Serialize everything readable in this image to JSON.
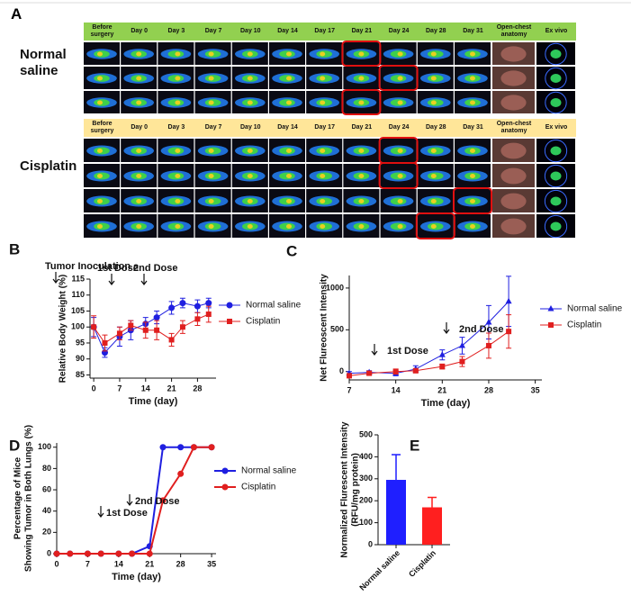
{
  "panel_a": {
    "label": "A",
    "headers": [
      "Before surgery",
      "Day 0",
      "Day 3",
      "Day 7",
      "Day 10",
      "Day 14",
      "Day 17",
      "Day 21",
      "Day 24",
      "Day 28",
      "Day 31",
      "Open-chest anatomy",
      "Ex vivo"
    ],
    "groups": [
      "Normal saline",
      "Cisplatin"
    ]
  },
  "chart_data": [
    {
      "type": "line",
      "panel": "B",
      "x_label": "Time (day)",
      "y_label": [
        "Relative Body Weight (%)"
      ],
      "x": [
        0,
        3,
        7,
        10,
        14,
        17,
        21,
        24,
        28,
        31
      ],
      "series": [
        {
          "name": "Normal saline",
          "color": "#1f1fe0",
          "marker": "circle",
          "values": [
            100,
            92,
            97,
            99,
            101,
            103,
            106,
            107.5,
            106.5,
            107.5
          ],
          "errors": [
            3,
            1.5,
            3,
            3,
            2,
            2,
            2,
            1.5,
            2,
            1.5
          ]
        },
        {
          "name": "Cisplatin",
          "color": "#e01f1f",
          "marker": "square",
          "values": [
            100,
            95,
            98,
            100.5,
            99,
            99,
            96,
            100,
            102.5,
            104
          ],
          "errors": [
            3.5,
            2.5,
            2,
            1.5,
            2.5,
            3,
            2,
            2,
            2,
            2.5
          ]
        }
      ],
      "xlim": [
        -1,
        33
      ],
      "xticks": [
        0,
        7,
        14,
        21,
        28
      ],
      "ylim": [
        84,
        115
      ],
      "yticks": [
        85,
        90,
        95,
        100,
        105,
        110,
        115
      ],
      "annotations": [
        "Tumor Inoculation",
        "1st Dose",
        "2nd Dose"
      ]
    },
    {
      "type": "line",
      "panel": "C",
      "x_label": "Time (day)",
      "y_label": [
        "Net Flureoscent Intensity"
      ],
      "x": [
        7,
        10,
        14,
        17,
        21,
        24,
        28,
        31
      ],
      "series": [
        {
          "name": "Normal saline",
          "color": "#1f1fe0",
          "marker": "triangle",
          "values": [
            -20,
            -10,
            -20,
            30,
            200,
            310,
            590,
            840
          ],
          "errors": [
            20,
            20,
            30,
            40,
            60,
            100,
            200,
            300
          ]
        },
        {
          "name": "Cisplatin",
          "color": "#e01f1f",
          "marker": "square",
          "values": [
            -50,
            -20,
            0,
            10,
            60,
            120,
            310,
            480
          ],
          "errors": [
            20,
            20,
            30,
            20,
            30,
            60,
            150,
            200
          ]
        }
      ],
      "xlim": [
        7,
        36
      ],
      "xticks": [
        7,
        14,
        21,
        28,
        35
      ],
      "ylim": [
        -100,
        1150
      ],
      "yticks": [
        0,
        500,
        1000
      ],
      "annotations": [
        "1st Dose",
        "2nd Dose"
      ]
    },
    {
      "type": "line",
      "panel": "D",
      "x_label": "Time (day)",
      "y_label": [
        "Percentage of Mice",
        "Showing Tumor in Both Lungs (%)"
      ],
      "x": [
        0,
        3,
        7,
        10,
        14,
        17,
        21,
        24,
        28,
        31,
        35
      ],
      "series": [
        {
          "name": "Normal saline",
          "color": "#1f1fe0",
          "marker": "circle",
          "values": [
            0,
            0,
            0,
            0,
            0,
            0,
            7,
            100,
            100,
            100,
            100
          ]
        },
        {
          "name": "Cisplatin",
          "color": "#e01f1f",
          "marker": "circle",
          "values": [
            0,
            0,
            0,
            0,
            0,
            0,
            0,
            50,
            75,
            100,
            100
          ]
        }
      ],
      "xlim": [
        0,
        36
      ],
      "xticks": [
        0,
        7,
        14,
        21,
        28,
        35
      ],
      "ylim": [
        0,
        104
      ],
      "yticks": [
        0,
        20,
        40,
        60,
        80,
        100
      ],
      "annotations": [
        "1st Dose",
        "2nd Dose"
      ]
    },
    {
      "type": "bar",
      "panel": "E",
      "y_label": [
        "Normalized Flurescent Intensity",
        "(RFU/mg protein)"
      ],
      "categories": [
        "Normal saline",
        "Cisplatin"
      ],
      "values": [
        295,
        170
      ],
      "errors": [
        115,
        45
      ],
      "colors": [
        "#1f1fff",
        "#ff1f1f"
      ],
      "ylim": [
        0,
        500
      ],
      "yticks": [
        0,
        100,
        200,
        300,
        400,
        500
      ]
    }
  ]
}
